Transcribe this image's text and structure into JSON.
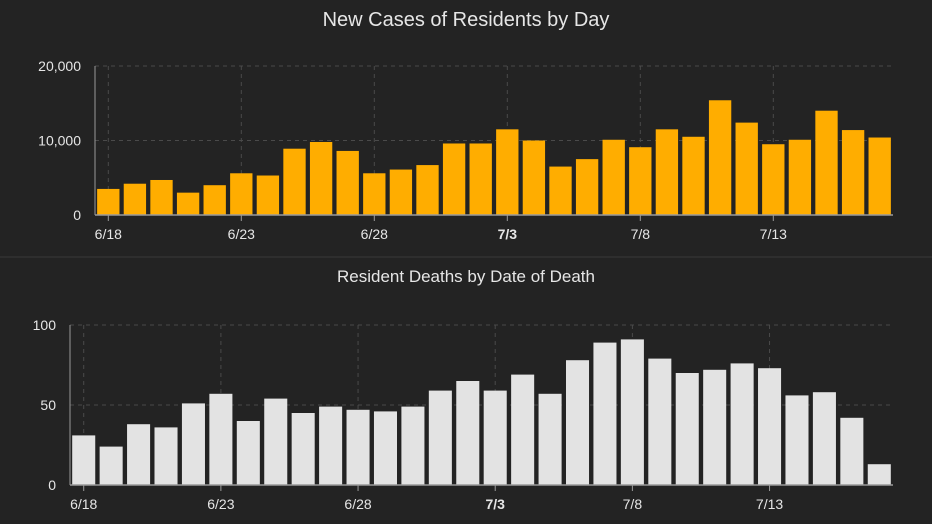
{
  "colors": {
    "background": "#232323",
    "grid": "#4a4a4a",
    "text": "#e6e6e6",
    "axis": "#9a9a9a",
    "cases_bar": "#ffad00",
    "deaths_bar": "#e3e3e3"
  },
  "chart_data": [
    {
      "type": "bar",
      "title": "New Cases of Residents by Day",
      "xlabel": "",
      "ylabel": "",
      "ylim": [
        0,
        20000
      ],
      "yticks": [
        "0",
        "10,000",
        "20,000"
      ],
      "ytick_values": [
        0,
        10000,
        20000
      ],
      "grid": true,
      "legend": "none",
      "categories": [
        "6/18",
        "6/19",
        "6/20",
        "6/21",
        "6/22",
        "6/23",
        "6/24",
        "6/25",
        "6/26",
        "6/27",
        "6/28",
        "6/29",
        "6/30",
        "7/1",
        "7/2",
        "7/3",
        "7/4",
        "7/5",
        "7/6",
        "7/7",
        "7/8",
        "7/9",
        "7/10",
        "7/11",
        "7/12",
        "7/13",
        "7/14",
        "7/15",
        "7/16",
        "7/17"
      ],
      "values": [
        3500,
        4200,
        4700,
        3000,
        4000,
        5600,
        5300,
        8900,
        9800,
        8600,
        5600,
        6100,
        6700,
        9600,
        9600,
        11500,
        10000,
        6500,
        7500,
        10100,
        9100,
        11500,
        10500,
        15400,
        12400,
        9500,
        10100,
        14000,
        11400,
        10400
      ],
      "xticks": [
        "6/18",
        "6/23",
        "6/28",
        "7/3",
        "7/8",
        "7/13"
      ],
      "bold_tick": "7/3"
    },
    {
      "type": "bar",
      "title": "Resident Deaths by Date of Death",
      "xlabel": "",
      "ylabel": "",
      "ylim": [
        0,
        100
      ],
      "yticks": [
        "0",
        "50",
        "100"
      ],
      "ytick_values": [
        0,
        50,
        100
      ],
      "grid": true,
      "legend": "none",
      "categories": [
        "6/18",
        "6/19",
        "6/20",
        "6/21",
        "6/22",
        "6/23",
        "6/24",
        "6/25",
        "6/26",
        "6/27",
        "6/28",
        "6/29",
        "6/30",
        "7/1",
        "7/2",
        "7/3",
        "7/4",
        "7/5",
        "7/6",
        "7/7",
        "7/8",
        "7/9",
        "7/10",
        "7/11",
        "7/12",
        "7/13",
        "7/14",
        "7/15",
        "7/16",
        "7/17"
      ],
      "values": [
        31,
        24,
        38,
        36,
        51,
        57,
        40,
        54,
        45,
        49,
        47,
        46,
        49,
        59,
        65,
        59,
        69,
        57,
        78,
        89,
        91,
        79,
        70,
        72,
        76,
        73,
        56,
        58,
        42,
        13
      ],
      "xticks": [
        "6/18",
        "6/23",
        "6/28",
        "7/3",
        "7/8",
        "7/13"
      ],
      "bold_tick": "7/3"
    }
  ]
}
